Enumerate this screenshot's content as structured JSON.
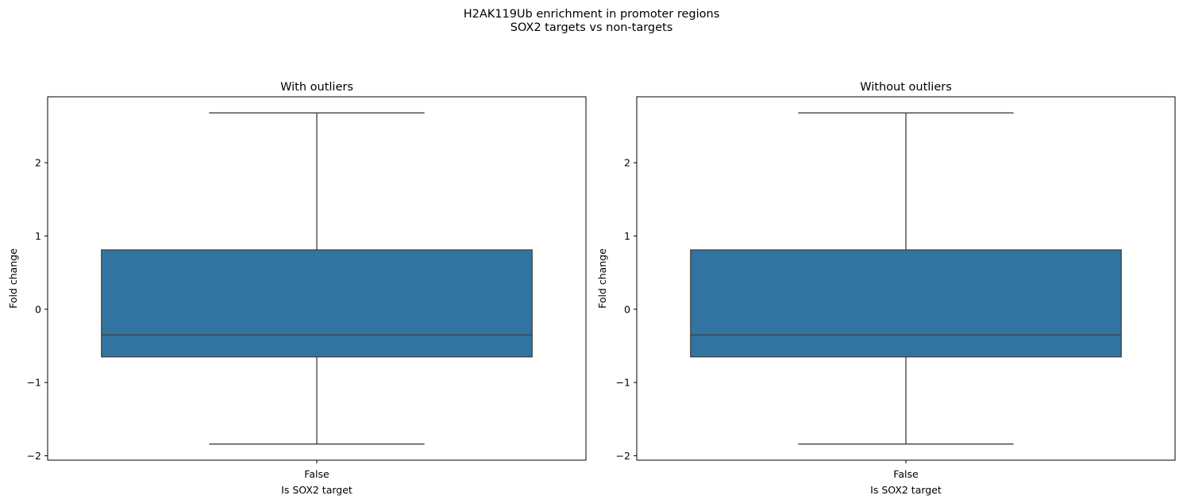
{
  "figure": {
    "suptitle_line1": "H2AK119Ub enrichment in promoter regions",
    "suptitle_line2": "SOX2 targets vs non-targets"
  },
  "colors": {
    "box_fill": "#3274a1",
    "box_edge": "#3f3f3f",
    "axes_edge": "#000000"
  },
  "chart_data": [
    {
      "type": "box",
      "title": "With outliers",
      "xlabel": "Is SOX2 target",
      "ylabel": "Fold change",
      "categories": [
        "False"
      ],
      "boxes": [
        {
          "category": "False",
          "whisker_low": -1.84,
          "q1": -0.65,
          "median": -0.35,
          "q3": 0.81,
          "whisker_high": 2.68
        }
      ],
      "ylim": [
        -2.06,
        2.9
      ],
      "yticks": [
        -2,
        -1,
        0,
        1,
        2
      ],
      "ytick_labels": [
        "−2",
        "−1",
        "0",
        "1",
        "2"
      ],
      "grid": false
    },
    {
      "type": "box",
      "title": "Without outliers",
      "xlabel": "Is SOX2 target",
      "ylabel": "Fold change",
      "categories": [
        "False"
      ],
      "boxes": [
        {
          "category": "False",
          "whisker_low": -1.84,
          "q1": -0.65,
          "median": -0.35,
          "q3": 0.81,
          "whisker_high": 2.68
        }
      ],
      "ylim": [
        -2.06,
        2.9
      ],
      "yticks": [
        -2,
        -1,
        0,
        1,
        2
      ],
      "ytick_labels": [
        "−2",
        "−1",
        "0",
        "1",
        "2"
      ],
      "grid": false
    }
  ]
}
